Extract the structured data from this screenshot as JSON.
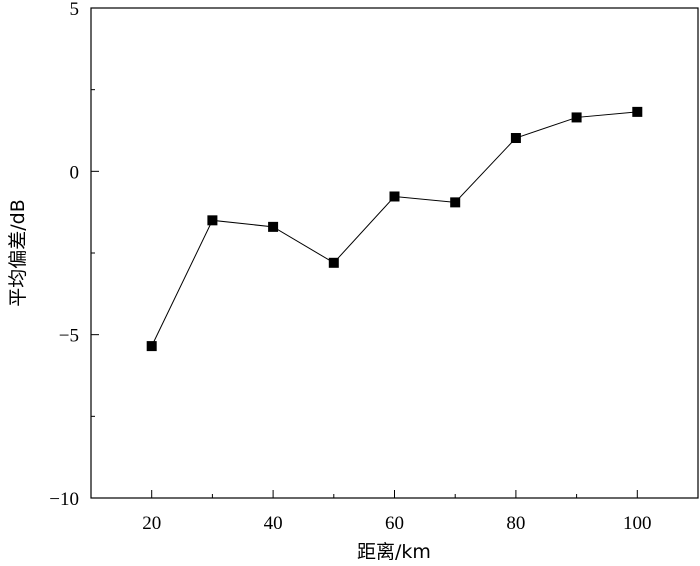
{
  "chart_data": {
    "type": "line",
    "title": "",
    "xlabel": "距离/km",
    "ylabel": "平均偏差/dB",
    "xlim": [
      10,
      110
    ],
    "ylim": [
      -10,
      5
    ],
    "x_ticks": [
      20,
      40,
      60,
      80,
      100
    ],
    "y_ticks": [
      -10,
      -5,
      0,
      5
    ],
    "y_tick_labels": [
      "−10",
      "−5",
      "0",
      "5"
    ],
    "grid": false,
    "series": [
      {
        "marker": "square",
        "color": "#000000",
        "x": [
          20,
          30,
          40,
          50,
          60,
          70,
          80,
          90,
          100
        ],
        "y": [
          -5.35,
          -1.5,
          -1.7,
          -2.8,
          -0.77,
          -0.95,
          1.02,
          1.65,
          1.82
        ]
      }
    ]
  }
}
